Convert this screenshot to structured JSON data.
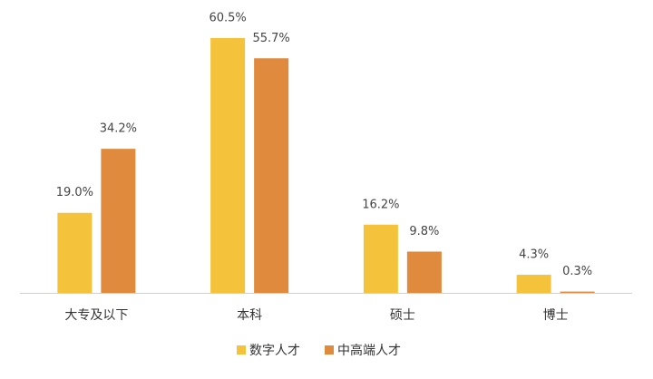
{
  "chart_data": {
    "type": "bar",
    "categories": [
      "大专及以下",
      "本科",
      "硕士",
      "博士"
    ],
    "series": [
      {
        "name": "数字人才",
        "color": "#F5C33B",
        "values": [
          19.0,
          60.5,
          16.2,
          4.3
        ],
        "value_labels": [
          "19.0%",
          "60.5%",
          "16.2%",
          "4.3%"
        ]
      },
      {
        "name": "中高端人才",
        "color": "#E08A3E",
        "values": [
          34.2,
          55.7,
          9.8,
          0.3
        ],
        "value_labels": [
          "34.2%",
          "55.7%",
          "9.8%",
          "0.3%"
        ]
      }
    ],
    "legend": "bottom"
  }
}
